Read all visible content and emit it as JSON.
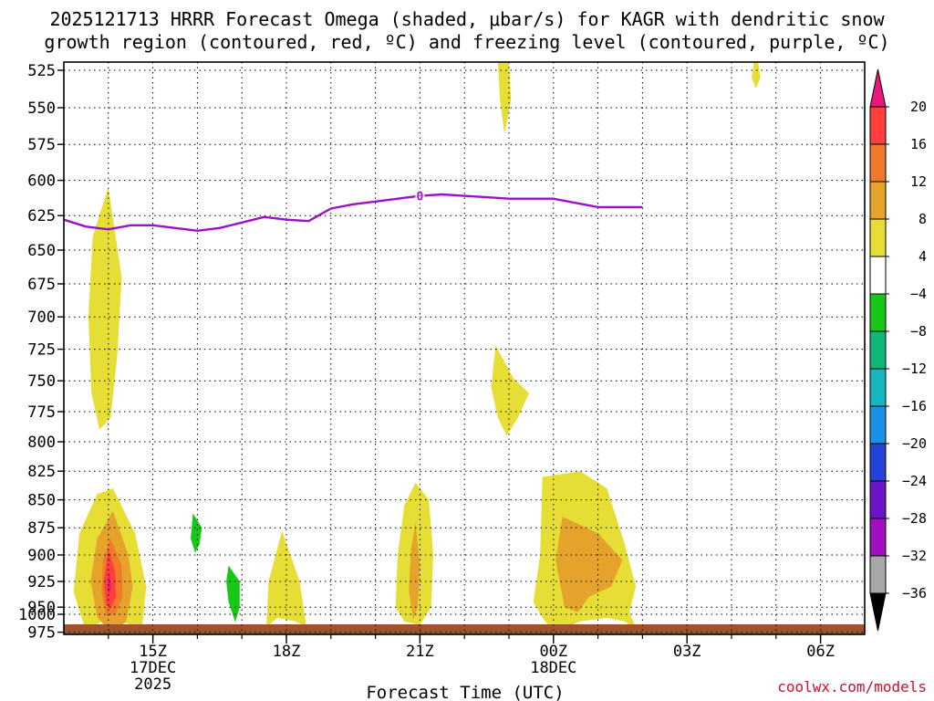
{
  "chart_data": {
    "type": "heatmap",
    "title_line1": "2025121713 HRRR Forecast Omega (shaded, μbar/s) for KAGR with dendritic snow",
    "title_line2": "growth region (contoured, red, ºC) and freezing level (contoured, purple, ºC)",
    "xlabel": "Forecast Time (UTC)",
    "ylabel": "",
    "y_axis": {
      "scale": "pressure",
      "ticks": [
        525,
        550,
        575,
        600,
        625,
        650,
        675,
        700,
        725,
        750,
        775,
        800,
        825,
        850,
        875,
        900,
        925,
        950,
        975,
        1000
      ]
    },
    "x_axis": {
      "range_hours": [
        13.0,
        7.1
      ],
      "ticks": [
        {
          "label": "15Z",
          "sub1": "17DEC",
          "sub2": "2025"
        },
        {
          "label": "18Z",
          "sub1": "",
          "sub2": ""
        },
        {
          "label": "21Z",
          "sub1": "",
          "sub2": ""
        },
        {
          "label": "00Z",
          "sub1": "18DEC",
          "sub2": ""
        },
        {
          "label": "03Z",
          "sub1": "",
          "sub2": ""
        },
        {
          "label": "06Z",
          "sub1": "",
          "sub2": ""
        }
      ]
    },
    "grid": "dotted",
    "colorbar": {
      "levels": [
        "20",
        "16",
        "12",
        "8",
        "4",
        "−4",
        "−8",
        "−12",
        "−16",
        "−20",
        "−24",
        "−28",
        "−32",
        "−36"
      ],
      "colors": [
        "#e8197a",
        "#ff3e3e",
        "#f07a2a",
        "#e5a32c",
        "#e6de35",
        "#ffffff",
        "#18c818",
        "#10b878",
        "#16b6c0",
        "#1a90e8",
        "#2242d8",
        "#6a16c8",
        "#a010c0",
        "#a8a8a8",
        "#000000"
      ]
    },
    "freezing_level": {
      "color": "#9b10c8",
      "contour_label": "0",
      "hours": [
        0,
        0.5,
        1,
        1.5,
        2,
        2.5,
        3,
        3.5,
        4,
        4.5,
        5,
        5.5,
        6,
        6.5,
        7,
        7.5,
        8,
        8.5,
        9,
        9.5,
        10,
        10.5,
        11,
        11.5,
        12,
        12.5,
        13
      ],
      "pressure": [
        628,
        633,
        635,
        632,
        632,
        634,
        636,
        634,
        630,
        626,
        628,
        629,
        620,
        617,
        615,
        613,
        611,
        610,
        611,
        612,
        613,
        613,
        613,
        616,
        619,
        619,
        619
      ]
    },
    "omega_regions": [
      {
        "level": "4",
        "color": "#e6de35",
        "points": [
          [
            1,
            605
          ],
          [
            1.3,
            670
          ],
          [
            1.2,
            730
          ],
          [
            1.05,
            780
          ],
          [
            0.8,
            790
          ],
          [
            0.62,
            760
          ],
          [
            0.55,
            700
          ],
          [
            0.65,
            640
          ]
        ]
      },
      {
        "level": "4",
        "color": "#e6de35",
        "points": [
          [
            1.1,
            840
          ],
          [
            1.6,
            880
          ],
          [
            1.85,
            930
          ],
          [
            1.75,
            975
          ],
          [
            1.35,
            990
          ],
          [
            0.95,
            995
          ],
          [
            0.5,
            975
          ],
          [
            0.22,
            935
          ],
          [
            0.35,
            880
          ],
          [
            0.75,
            845
          ]
        ]
      },
      {
        "level": "8",
        "color": "#e5a32c",
        "points": [
          [
            1.1,
            860
          ],
          [
            1.45,
            900
          ],
          [
            1.55,
            930
          ],
          [
            1.4,
            965
          ],
          [
            1.05,
            975
          ],
          [
            0.75,
            960
          ],
          [
            0.6,
            925
          ],
          [
            0.75,
            885
          ]
        ]
      },
      {
        "level": "12",
        "color": "#f07a2a",
        "points": [
          [
            1.05,
            885
          ],
          [
            1.3,
            910
          ],
          [
            1.32,
            940
          ],
          [
            1.15,
            958
          ],
          [
            0.95,
            958
          ],
          [
            0.85,
            935
          ],
          [
            0.88,
            905
          ]
        ]
      },
      {
        "level": "16",
        "color": "#ff3e3e",
        "points": [
          [
            1.0,
            895
          ],
          [
            1.15,
            915
          ],
          [
            1.17,
            940
          ],
          [
            1.05,
            952
          ],
          [
            0.95,
            948
          ],
          [
            0.9,
            925
          ]
        ]
      },
      {
        "level": "20",
        "color": "#e8197a",
        "points": [
          [
            1.02,
            915
          ],
          [
            1.06,
            930
          ],
          [
            1.02,
            938
          ],
          [
            0.98,
            930
          ]
        ]
      },
      {
        "level": "-4",
        "color": "#18c818",
        "points": [
          [
            2.9,
            862
          ],
          [
            3.1,
            875
          ],
          [
            3.05,
            890
          ],
          [
            2.95,
            898
          ],
          [
            2.85,
            885
          ]
        ]
      },
      {
        "level": "-4",
        "color": "#18c818",
        "points": [
          [
            3.7,
            910
          ],
          [
            3.95,
            925
          ],
          [
            3.95,
            950
          ],
          [
            3.85,
            965
          ],
          [
            3.7,
            945
          ],
          [
            3.65,
            925
          ]
        ]
      },
      {
        "level": "4",
        "color": "#e6de35",
        "points": [
          [
            4.9,
            878
          ],
          [
            5.3,
            925
          ],
          [
            5.45,
            970
          ],
          [
            5.2,
            990
          ],
          [
            4.8,
            995
          ],
          [
            4.55,
            970
          ],
          [
            4.6,
            925
          ]
        ]
      },
      {
        "level": "4",
        "color": "#e6de35",
        "points": [
          [
            7.9,
            835
          ],
          [
            8.2,
            850
          ],
          [
            8.3,
            900
          ],
          [
            8.25,
            950
          ],
          [
            8.0,
            985
          ],
          [
            7.65,
            990
          ],
          [
            7.45,
            950
          ],
          [
            7.5,
            900
          ],
          [
            7.65,
            855
          ]
        ]
      },
      {
        "level": "8",
        "color": "#e5a32c",
        "points": [
          [
            7.9,
            870
          ],
          [
            8.0,
            910
          ],
          [
            7.95,
            950
          ],
          [
            7.85,
            962
          ],
          [
            7.75,
            935
          ],
          [
            7.8,
            895
          ]
        ]
      },
      {
        "level": "4",
        "color": "#e6de35",
        "points": [
          [
            9.7,
            722
          ],
          [
            10.1,
            748
          ],
          [
            10.45,
            760
          ],
          [
            10.2,
            780
          ],
          [
            9.95,
            795
          ],
          [
            9.75,
            780
          ],
          [
            9.6,
            755
          ]
        ]
      },
      {
        "level": "4",
        "color": "#e6de35",
        "points": [
          [
            9.75,
            520
          ],
          [
            10.0,
            520
          ],
          [
            10.05,
            545
          ],
          [
            9.9,
            568
          ],
          [
            9.8,
            545
          ]
        ]
      },
      {
        "level": "4",
        "color": "#e6de35",
        "points": [
          [
            10.75,
            830
          ],
          [
            11.6,
            825
          ],
          [
            12.2,
            840
          ],
          [
            12.6,
            890
          ],
          [
            12.85,
            930
          ],
          [
            12.7,
            955
          ],
          [
            12.9,
            975
          ],
          [
            12.6,
            990
          ],
          [
            12.2,
            995
          ],
          [
            11.6,
            990
          ],
          [
            11.0,
            975
          ],
          [
            10.75,
            960
          ],
          [
            10.55,
            945
          ],
          [
            10.7,
            900
          ]
        ]
      },
      {
        "level": "8",
        "color": "#e5a32c",
        "points": [
          [
            11.2,
            865
          ],
          [
            12.0,
            880
          ],
          [
            12.55,
            905
          ],
          [
            12.3,
            930
          ],
          [
            11.8,
            940
          ],
          [
            11.55,
            955
          ],
          [
            11.25,
            950
          ],
          [
            11.05,
            905
          ]
        ]
      },
      {
        "level": "4",
        "color": "#e6de35",
        "points": [
          [
            15.5,
            520
          ],
          [
            15.6,
            520
          ],
          [
            15.65,
            530
          ],
          [
            15.55,
            537
          ],
          [
            15.45,
            530
          ]
        ]
      }
    ],
    "credit": "coolwx.com/models"
  }
}
